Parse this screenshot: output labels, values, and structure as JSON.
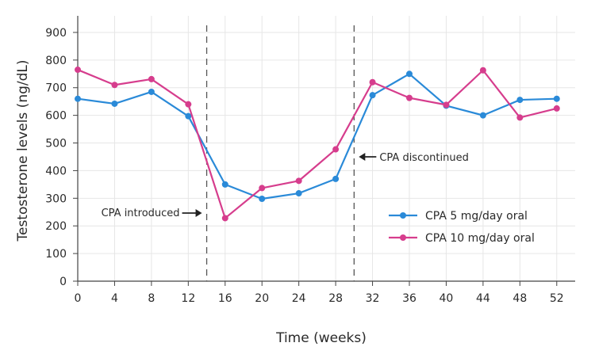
{
  "chart_data": {
    "type": "line",
    "title": "",
    "xlabel": "Time (weeks)",
    "ylabel": "Testosterone levels (ng/dL)",
    "x": [
      0,
      4,
      8,
      12,
      16,
      20,
      24,
      28,
      32,
      36,
      40,
      44,
      48,
      52
    ],
    "xticks": [
      0,
      4,
      8,
      12,
      16,
      20,
      24,
      28,
      32,
      36,
      40,
      44,
      48,
      52
    ],
    "yticks": [
      0,
      100,
      200,
      300,
      400,
      500,
      600,
      700,
      800,
      900
    ],
    "xlim": [
      0,
      54
    ],
    "ylim": [
      0,
      960
    ],
    "grid": true,
    "legend_position": "lower-right",
    "series": [
      {
        "name": "CPA 5 mg/day oral",
        "color": "#2a8ad8",
        "values": [
          660,
          642,
          685,
          597,
          350,
          298,
          318,
          370,
          673,
          750,
          635,
          600,
          656,
          660
        ]
      },
      {
        "name": "CPA 10 mg/day oral",
        "color": "#d63d8d",
        "values": [
          765,
          710,
          731,
          640,
          228,
          337,
          363,
          477,
          720,
          663,
          638,
          763,
          592,
          625
        ]
      }
    ],
    "reference_lines": [
      {
        "x": 14,
        "label": "CPA introduced",
        "arrow": "right"
      },
      {
        "x": 30,
        "label": "CPA discontinued",
        "arrow": "left"
      }
    ]
  }
}
